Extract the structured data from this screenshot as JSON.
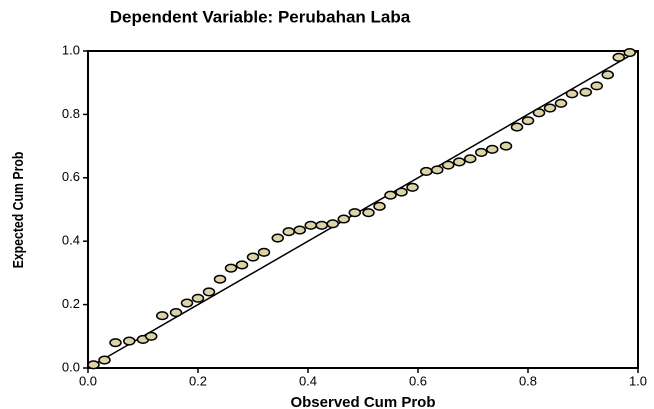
{
  "chart_data": {
    "type": "scatter",
    "title": "Dependent Variable: Perubahan Laba",
    "x_label": "Observed Cum Prob",
    "y_label": "Expected Cum Prob",
    "color": "#dcd4a6",
    "x": [
      0.01,
      0.03,
      0.05,
      0.075,
      0.1,
      0.115,
      0.135,
      0.16,
      0.18,
      0.2,
      0.22,
      0.24,
      0.26,
      0.28,
      0.3,
      0.32,
      0.345,
      0.365,
      0.385,
      0.405,
      0.425,
      0.445,
      0.465,
      0.485,
      0.51,
      0.53,
      0.55,
      0.57,
      0.59,
      0.615,
      0.635,
      0.655,
      0.675,
      0.695,
      0.715,
      0.735,
      0.76,
      0.78,
      0.8,
      0.82,
      0.84,
      0.86,
      0.88,
      0.905,
      0.925,
      0.945,
      0.965,
      0.985
    ],
    "values": [
      0.01,
      0.025,
      0.08,
      0.085,
      0.09,
      0.1,
      0.165,
      0.175,
      0.205,
      0.22,
      0.24,
      0.28,
      0.315,
      0.325,
      0.35,
      0.365,
      0.41,
      0.43,
      0.435,
      0.45,
      0.45,
      0.455,
      0.47,
      0.49,
      0.49,
      0.51,
      0.545,
      0.555,
      0.57,
      0.62,
      0.625,
      0.64,
      0.65,
      0.66,
      0.68,
      0.69,
      0.7,
      0.76,
      0.78,
      0.805,
      0.82,
      0.835,
      0.865,
      0.87,
      0.89,
      0.925,
      0.98,
      0.995
    ],
    "xlim": [
      0,
      1
    ],
    "ylim": [
      0,
      1
    ],
    "xticks": [
      {
        "value": 0,
        "label": "0.0"
      },
      0.2,
      0.4,
      0.6,
      0.8,
      {
        "value": 1,
        "label": "1.0"
      }
    ],
    "yticks": [
      {
        "value": 0,
        "label": "0.0"
      },
      0.2,
      0.4,
      0.6,
      0.8,
      {
        "value": 1,
        "label": "1.0"
      }
    ]
  }
}
